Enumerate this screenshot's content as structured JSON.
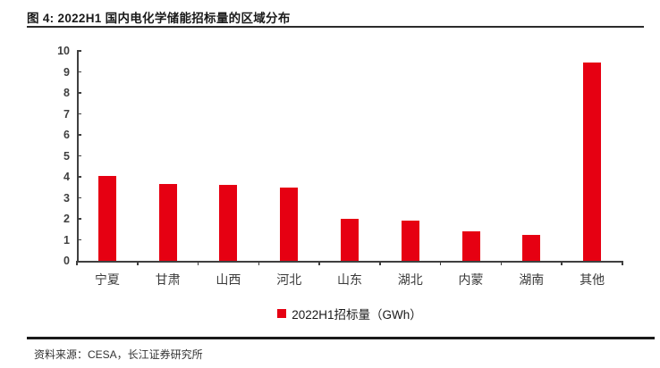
{
  "figure": {
    "title": "图 4: 2022H1 国内电化学储能招标量的区域分布",
    "source": "资料来源：CESA，长江证券研究所"
  },
  "chart_data": {
    "type": "bar",
    "categories": [
      "宁夏",
      "甘肃",
      "山西",
      "河北",
      "山东",
      "湖北",
      "内蒙",
      "湖南",
      "其他"
    ],
    "values": [
      4.05,
      3.65,
      3.6,
      3.5,
      2.0,
      1.9,
      1.4,
      1.25,
      9.45
    ],
    "title": "",
    "xlabel": "",
    "ylabel": "",
    "ylim": [
      0,
      10
    ],
    "ytick_interval": 1,
    "yticks": [
      0,
      1,
      2,
      3,
      4,
      5,
      6,
      7,
      8,
      9,
      10
    ],
    "grid": false,
    "legend": {
      "label": "2022H1招标量（GWh）",
      "position": "bottom"
    },
    "bar_color": "#e60012",
    "axis_color": "#3f3f3f"
  },
  "colors": {
    "accent_red": "#e60012",
    "rule_black": "#1a1a1a",
    "text_dark": "#333333"
  }
}
